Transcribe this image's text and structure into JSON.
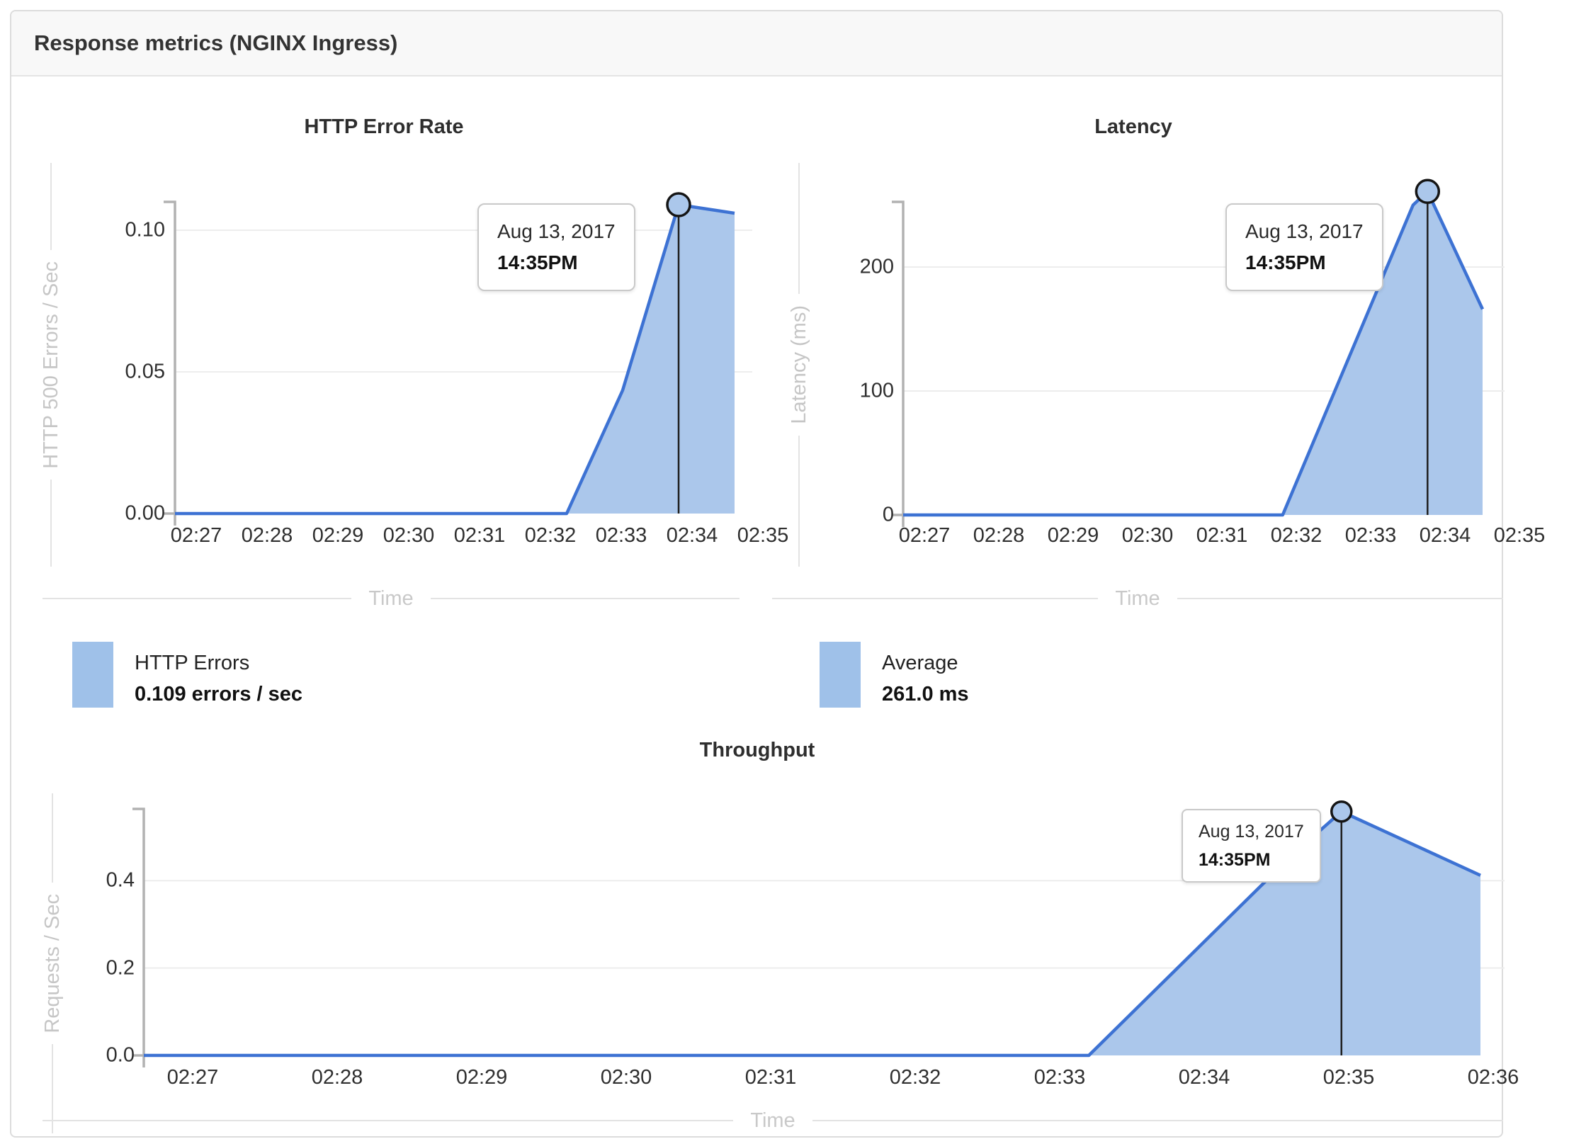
{
  "header": {
    "title": "Response metrics (NGINX Ingress)"
  },
  "tooltip_shared": {
    "date": "Aug 13, 2017",
    "time": "14:35PM"
  },
  "colors": {
    "line": "#3d72d3",
    "fill": "#abc7eb",
    "swatch": "#9fc1e9"
  },
  "legends": [
    {
      "label": "HTTP Errors",
      "value": "0.109 errors / sec"
    },
    {
      "label": "Average",
      "value": "261.0 ms"
    }
  ],
  "chart_data": [
    {
      "type": "area",
      "title": "HTTP Error Rate",
      "xlabel": "Time",
      "ylabel": "HTTP 500 Errors / Sec",
      "x_ticks": [
        "02:27",
        "02:28",
        "02:29",
        "02:30",
        "02:31",
        "02:32",
        "02:33",
        "02:34",
        "02:35"
      ],
      "y_ticks": [
        {
          "value": 0.1,
          "label": "0.10"
        },
        {
          "value": 0.05,
          "label": "0.05"
        },
        {
          "value": 0.0,
          "label": "0.00"
        }
      ],
      "ylim": [
        0,
        0.11
      ],
      "grid": true,
      "legend_position": "below-left",
      "series": [
        {
          "name": "HTTP Errors",
          "x_unit": "fraction_of_x_axis",
          "points": [
            [
              0,
              0
            ],
            [
              0.7,
              0
            ],
            [
              0.8,
              0.0435
            ],
            [
              0.9,
              0.109
            ],
            [
              1.0,
              0.106
            ]
          ]
        }
      ],
      "marker": {
        "point_index": 3,
        "value": 0.109,
        "tooltip_date": "Aug 13, 2017",
        "tooltip_time": "14:35PM"
      },
      "legend": {
        "label": "HTTP Errors",
        "value": "0.109 errors / sec"
      }
    },
    {
      "type": "area",
      "title": "Latency",
      "xlabel": "Time",
      "ylabel": "Latency (ms)",
      "x_ticks": [
        "02:27",
        "02:28",
        "02:29",
        "02:30",
        "02:31",
        "02:32",
        "02:33",
        "02:34",
        "02:35"
      ],
      "y_ticks": [
        {
          "value": 200,
          "label": "200"
        },
        {
          "value": 100,
          "label": "100"
        },
        {
          "value": 0,
          "label": "0"
        }
      ],
      "ylim": [
        0,
        254
      ],
      "grid": true,
      "legend_position": "below-left",
      "series": [
        {
          "name": "Average",
          "x_unit": "fraction_of_x_axis",
          "points": [
            [
              0,
              0
            ],
            [
              0.655,
              0
            ],
            [
              0.88,
              250
            ],
            [
              0.905,
              261
            ],
            [
              1.0,
              166
            ]
          ]
        }
      ],
      "marker": {
        "point_index": 3,
        "value": 261,
        "tooltip_date": "Aug 13, 2017",
        "tooltip_time": "14:35PM"
      },
      "legend": {
        "label": "Average",
        "value": "261.0 ms"
      }
    },
    {
      "type": "area",
      "title": "Throughput",
      "xlabel": "Time",
      "ylabel": "Requests / Sec",
      "x_ticks": [
        "02:27",
        "02:28",
        "02:29",
        "02:30",
        "02:31",
        "02:32",
        "02:33",
        "02:34",
        "02:35",
        "02:36"
      ],
      "y_ticks": [
        {
          "value": 0.4,
          "label": "0.4"
        },
        {
          "value": 0.2,
          "label": "0.2"
        },
        {
          "value": 0.0,
          "label": "0.0"
        }
      ],
      "ylim": [
        0,
        0.57
      ],
      "grid": true,
      "legend_position": "none",
      "series": [
        {
          "name": "Requests / Sec",
          "x_unit": "fraction_of_x_axis",
          "points": [
            [
              0,
              0
            ],
            [
              0.707,
              0
            ],
            [
              0.857,
              0.452
            ],
            [
              0.896,
              0.558
            ],
            [
              1.0,
              0.412
            ]
          ]
        }
      ],
      "marker": {
        "point_index": 3,
        "value": 0.558,
        "tooltip_date": "Aug 13, 2017",
        "tooltip_time": "14:35PM"
      },
      "legend": null
    }
  ]
}
